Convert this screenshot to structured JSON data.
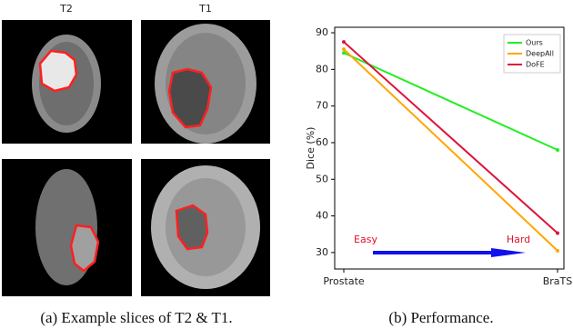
{
  "figure": {
    "image_labels": [
      "T2",
      "T1"
    ],
    "captions": [
      "(a) Example slices of T2 & T1.",
      "(b) Performance."
    ]
  },
  "chart_data": {
    "type": "line",
    "y_label": "Dice (%)",
    "categories": [
      "Prostate",
      "BraTS"
    ],
    "series": [
      {
        "name": "Ours",
        "color": "#22ee22",
        "values": [
          84.5,
          58
        ]
      },
      {
        "name": "DeepAll",
        "color": "#ffa500",
        "values": [
          85.5,
          30.5
        ]
      },
      {
        "name": "DoFE",
        "color": "#dc143c",
        "values": [
          87.5,
          35.3
        ]
      }
    ],
    "ylim": [
      25.5,
      91.5
    ],
    "yticks": [
      30,
      40,
      50,
      60,
      70,
      80,
      90
    ],
    "legend": "upper right",
    "annotations": [
      "Easy",
      "Hard"
    ],
    "annotation_color": "#e0102a"
  }
}
